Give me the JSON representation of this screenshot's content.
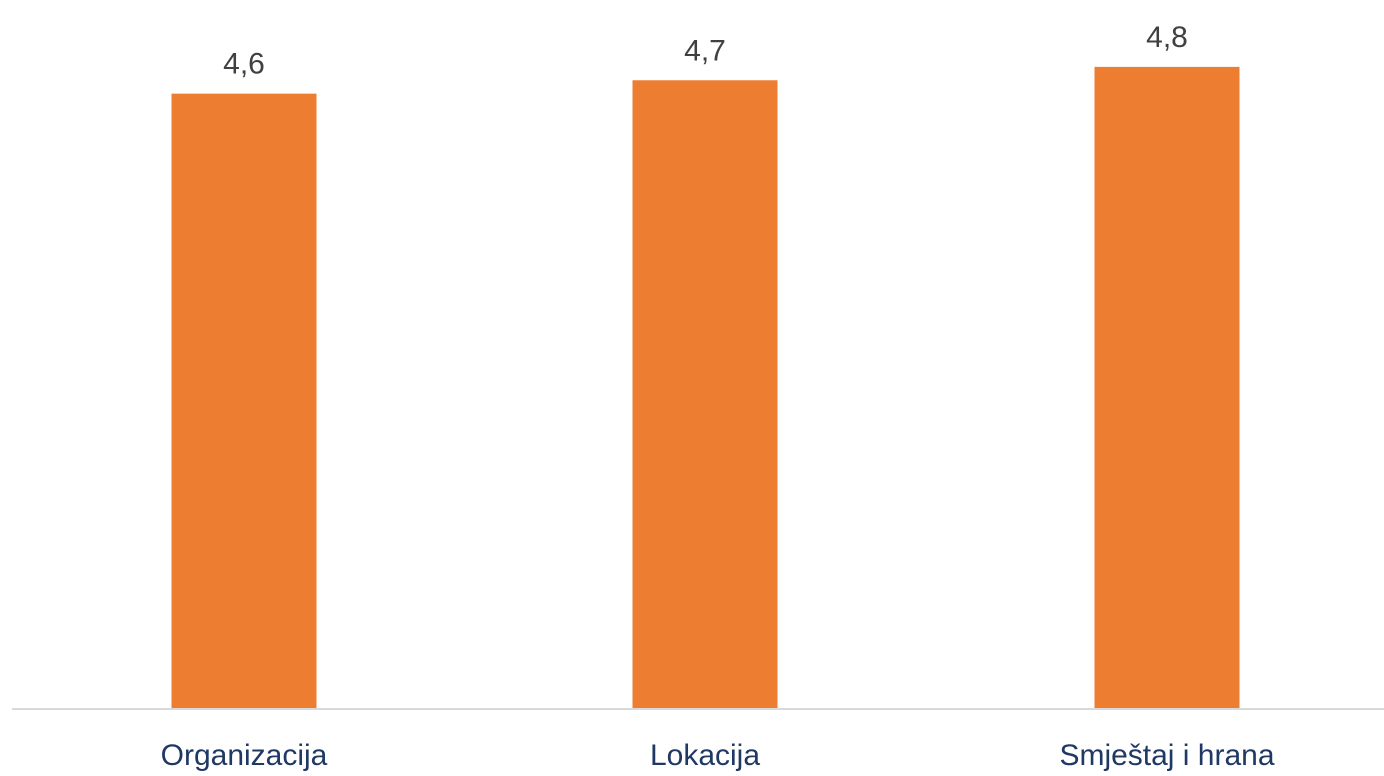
{
  "chart_data": {
    "type": "bar",
    "categories": [
      "Organizacija",
      "Lokacija",
      "Smještaj i hrana"
    ],
    "values": [
      4.6,
      4.7,
      4.8
    ],
    "value_labels": [
      "4,6",
      "4,7",
      "4,8"
    ],
    "title": "",
    "xlabel": "",
    "ylabel": "",
    "ylim": [
      0,
      5.3
    ],
    "grid": false,
    "legend": "none"
  },
  "colors": {
    "bar": "#ED7D31",
    "axis_line": "#D9D9D9",
    "value_label": "#404040",
    "category_label": "#1F3864",
    "background": "#FFFFFF"
  }
}
